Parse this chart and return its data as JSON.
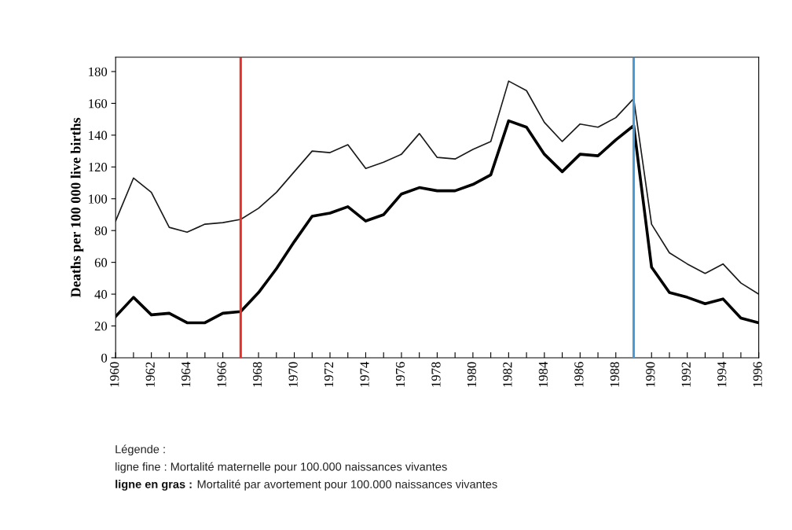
{
  "chart_data": {
    "type": "line",
    "ylabel": "Deaths per 100 000 live births",
    "x": [
      1960,
      1961,
      1962,
      1963,
      1964,
      1965,
      1966,
      1967,
      1968,
      1969,
      1970,
      1971,
      1972,
      1973,
      1974,
      1975,
      1976,
      1977,
      1978,
      1979,
      1980,
      1981,
      1982,
      1983,
      1984,
      1985,
      1986,
      1987,
      1988,
      1989,
      1990,
      1991,
      1992,
      1993,
      1994,
      1995,
      1996
    ],
    "series": [
      {
        "color": "#1a1a1a",
        "values": [
          86,
          113,
          104,
          82,
          79,
          84,
          85,
          87,
          94,
          104,
          117,
          130,
          129,
          134,
          119,
          123,
          128,
          141,
          126,
          125,
          131,
          136,
          174,
          168,
          148,
          136,
          147,
          145,
          151,
          163,
          84,
          66,
          59,
          53,
          59,
          47,
          40
        ]
      },
      {
        "color": "#000000",
        "values": [
          26,
          38,
          27,
          28,
          22,
          22,
          28,
          29,
          41,
          56,
          73,
          89,
          91,
          95,
          86,
          90,
          103,
          107,
          105,
          105,
          109,
          115,
          149,
          145,
          128,
          117,
          128,
          127,
          137,
          146,
          57,
          41,
          38,
          34,
          37,
          25,
          22
        ]
      }
    ],
    "xlim": [
      1960,
      1996
    ],
    "ylim": [
      0,
      189
    ],
    "xticks": [
      1960,
      {
        "value": 1961,
        "label": null
      },
      1962,
      {
        "value": 1963,
        "label": null
      },
      1964,
      {
        "value": 1965,
        "label": null
      },
      1966,
      {
        "value": 1967,
        "label": null
      },
      1968,
      {
        "value": 1969,
        "label": null
      },
      1970,
      {
        "value": 1971,
        "label": null
      },
      1972,
      {
        "value": 1973,
        "label": null
      },
      1974,
      {
        "value": 1975,
        "label": null
      },
      1976,
      {
        "value": 1977,
        "label": null
      },
      1978,
      {
        "value": 1979,
        "label": null
      },
      1980,
      {
        "value": 1981,
        "label": null
      },
      1982,
      {
        "value": 1983,
        "label": null
      },
      1984,
      {
        "value": 1985,
        "label": null
      },
      1986,
      {
        "value": 1987,
        "label": null
      },
      1988,
      {
        "value": 1989,
        "label": null
      },
      1990,
      {
        "value": 1991,
        "label": null
      },
      1992,
      {
        "value": 1993,
        "label": null
      },
      1994,
      {
        "value": 1995,
        "label": null
      },
      1996
    ],
    "yticks": [
      0,
      20,
      40,
      60,
      80,
      100,
      120,
      140,
      160,
      180
    ],
    "ref_lines": [
      {
        "axis": "x",
        "value": 1967,
        "color": "#e8302a"
      },
      {
        "axis": "x",
        "value": 1989,
        "color": "#4a9ad8"
      }
    ],
    "annotations": [
      "Légende :",
      "ligne fine : Mortalité maternelle pour 100.000 naissances vivantes",
      "ligne en gras :",
      "Mortalité par avortement pour 100.000 naissances vivantes"
    ],
    "grid": false,
    "legend": false,
    "marker": "none",
    "line_style": "solid"
  }
}
